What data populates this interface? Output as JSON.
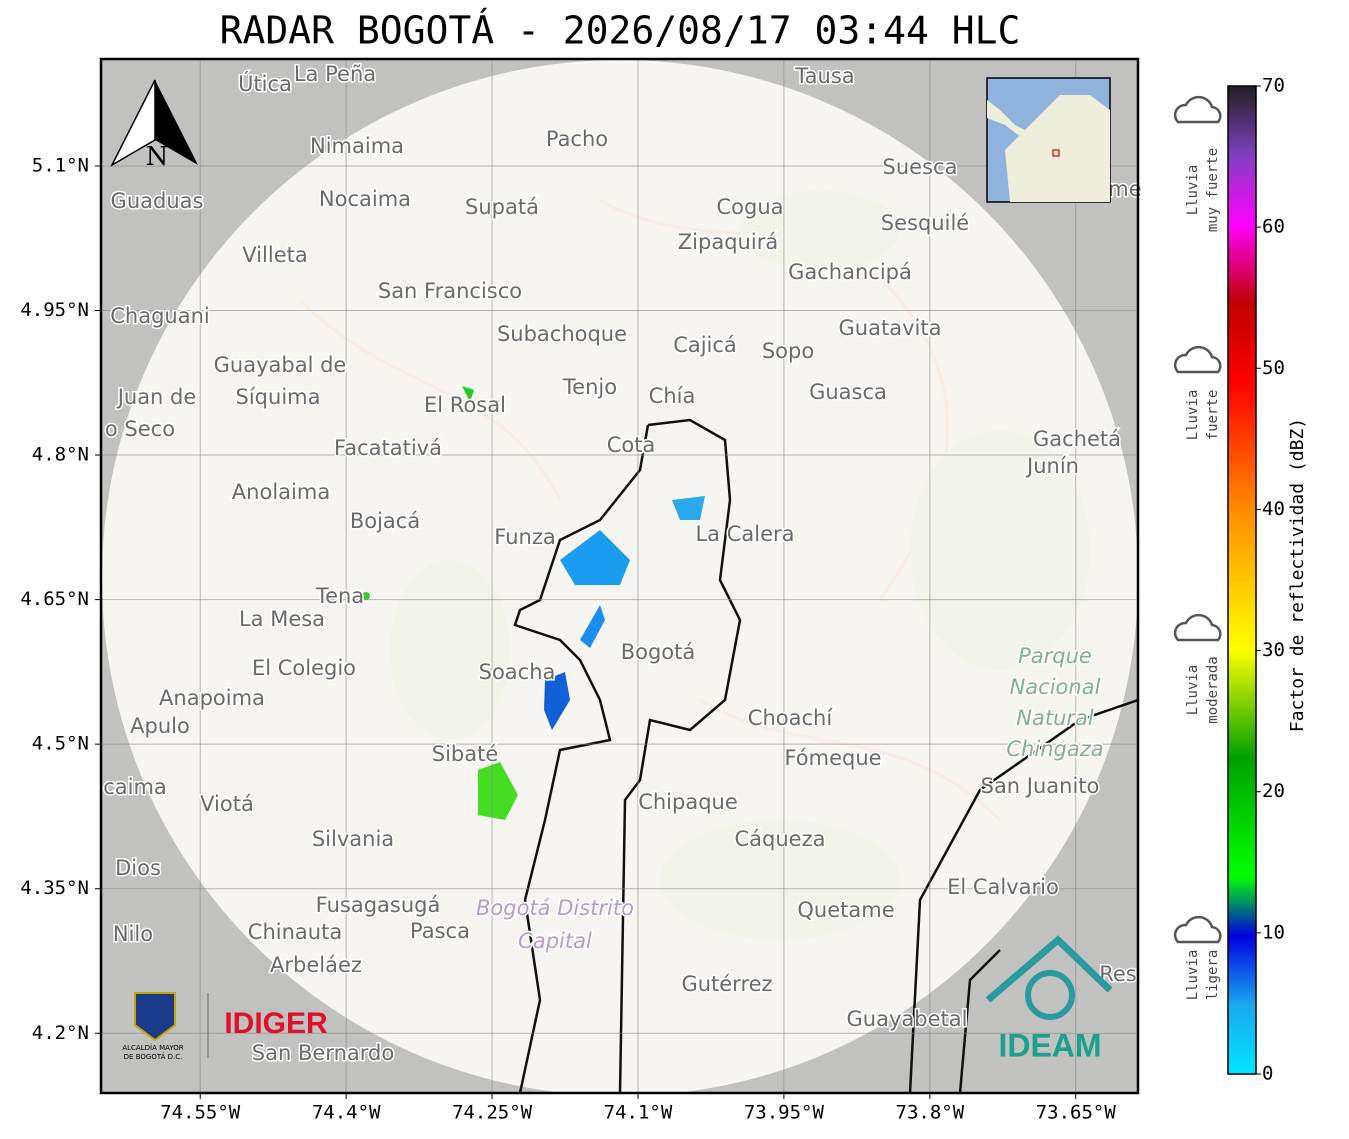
{
  "map": {
    "title": "RADAR BOGOTÁ - 2026/08/17 03:44 HLC",
    "xlim": [
      -74.652,
      -73.586
    ],
    "ylim": [
      4.138,
      5.211
    ],
    "xticks": [
      {
        "value": -74.55,
        "label": "74.55°W"
      },
      {
        "value": -74.4,
        "label": "74.4°W"
      },
      {
        "value": -74.25,
        "label": "74.25°W"
      },
      {
        "value": -74.1,
        "label": "74.1°W"
      },
      {
        "value": -73.95,
        "label": "73.95°W"
      },
      {
        "value": -73.8,
        "label": "73.8°W"
      },
      {
        "value": -73.65,
        "label": "73.65°W"
      }
    ],
    "yticks": [
      {
        "value": 5.1,
        "label": "5.1°N"
      },
      {
        "value": 4.95,
        "label": "4.95°N"
      },
      {
        "value": 4.8,
        "label": "4.8°N"
      },
      {
        "value": 4.65,
        "label": "4.65°N"
      },
      {
        "value": 4.5,
        "label": "4.5°N"
      },
      {
        "value": 4.35,
        "label": "4.35°N"
      },
      {
        "value": 4.2,
        "label": "4.2°N"
      }
    ],
    "north": "N",
    "places": [
      "Útica",
      "La Peña",
      "Tausa",
      "Pacho",
      "Nimaima",
      "Suesca",
      "Guaduas",
      "Nocaima",
      "Supatá",
      "Cogua",
      "Sesquilé",
      "Zipaquirá",
      "Villeta",
      "Gachancipá",
      "San Francisco",
      "Chaguani",
      "Guatavita",
      "Subachoque",
      "Cajicá",
      "Sopo",
      "Guayabal de",
      "Juan de",
      "Síquima",
      "Tenjo",
      "Chía",
      "El Rosal",
      "Guasca",
      "o Seco",
      "Facatativá",
      "Cota",
      "Gachetá",
      "Junín",
      "Anolaima",
      "Bojacá",
      "La Calera",
      "Funza",
      "Tena",
      "La Mesa",
      "Bogotá",
      "El Colegio",
      "Soacha",
      "Anapoima",
      "Apulo",
      "Choachí",
      "Sibaté",
      "Fómeque",
      "San Juanito",
      "caima",
      "Viotá",
      "Chipaque",
      "Silvania",
      "Cáqueza",
      "Dios",
      "El Calvario",
      "Fusagasugá",
      "Quetame",
      "Nilo",
      "Chinauta",
      "Pasca",
      "Arbeláez",
      "Res",
      "Gutérrez",
      "Guayabetal",
      "San Bernardo",
      "me"
    ],
    "park": [
      "Parque",
      "Nacional",
      "Natural",
      "Chingaza"
    ],
    "district": [
      "Bogotá Distrito",
      "Capital"
    ],
    "logos": {
      "alcaldia": [
        "ALCALDÍA MAYOR",
        "DE BOGOTÁ D.C."
      ],
      "idiger": "IDIGER",
      "ideam": "IDEAM"
    },
    "colorbar": {
      "label": "Factor de reflectividad (dBZ)",
      "ylim": [
        0,
        70
      ],
      "ticks": [
        0,
        10,
        20,
        30,
        40,
        50,
        60,
        70
      ]
    },
    "legend": [
      [
        "Lluvia",
        "muy fuerte"
      ],
      [
        "Lluvia",
        "fuerte"
      ],
      [
        "Lluvia",
        "moderada"
      ],
      [
        "Lluvia",
        "ligera"
      ]
    ]
  }
}
